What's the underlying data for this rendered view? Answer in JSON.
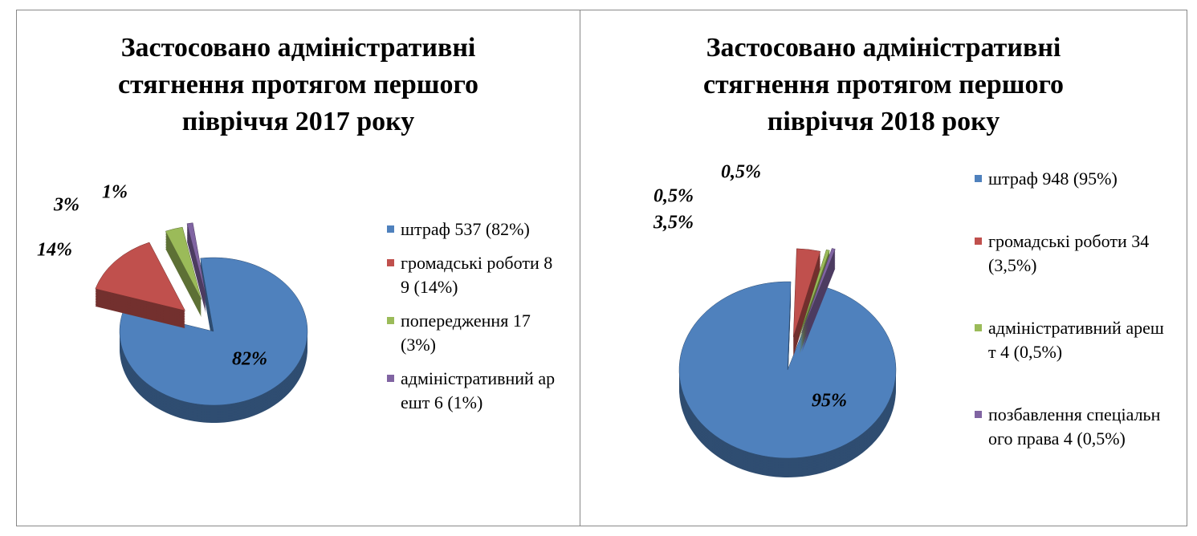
{
  "chart_data": [
    {
      "type": "pie",
      "title": "Застосовано адміністративні стягнення протягом першого півріччя 2017 року",
      "categories": [
        "штраф   537 (82%)",
        "громадські роботи  89 (14%)",
        "попередження 17 (3%)",
        "адміністративний арешт   6 (1%)"
      ],
      "values": [
        82,
        14,
        3,
        1
      ],
      "value_labels": [
        "82%",
        "14%",
        "3%",
        "1%"
      ],
      "colors": [
        "#4f81bd",
        "#c0504d",
        "#9bbb59",
        "#8064a2"
      ]
    },
    {
      "type": "pie",
      "title": "Застосовано адміністративні стягнення протягом першого півріччя 2018 року",
      "categories": [
        "штраф   948 (95%)",
        "громадські роботи 34 (3,5%)",
        "адміністративний арешт   4 (0,5%)",
        "позбавлення спеціального права  4 (0,5%)"
      ],
      "values": [
        95,
        3.5,
        0.5,
        0.5
      ],
      "value_labels": [
        "95%",
        "3,5%",
        "0,5%",
        "0,5%"
      ],
      "colors": [
        "#4f81bd",
        "#c0504d",
        "#9bbb59",
        "#8064a2"
      ]
    }
  ]
}
